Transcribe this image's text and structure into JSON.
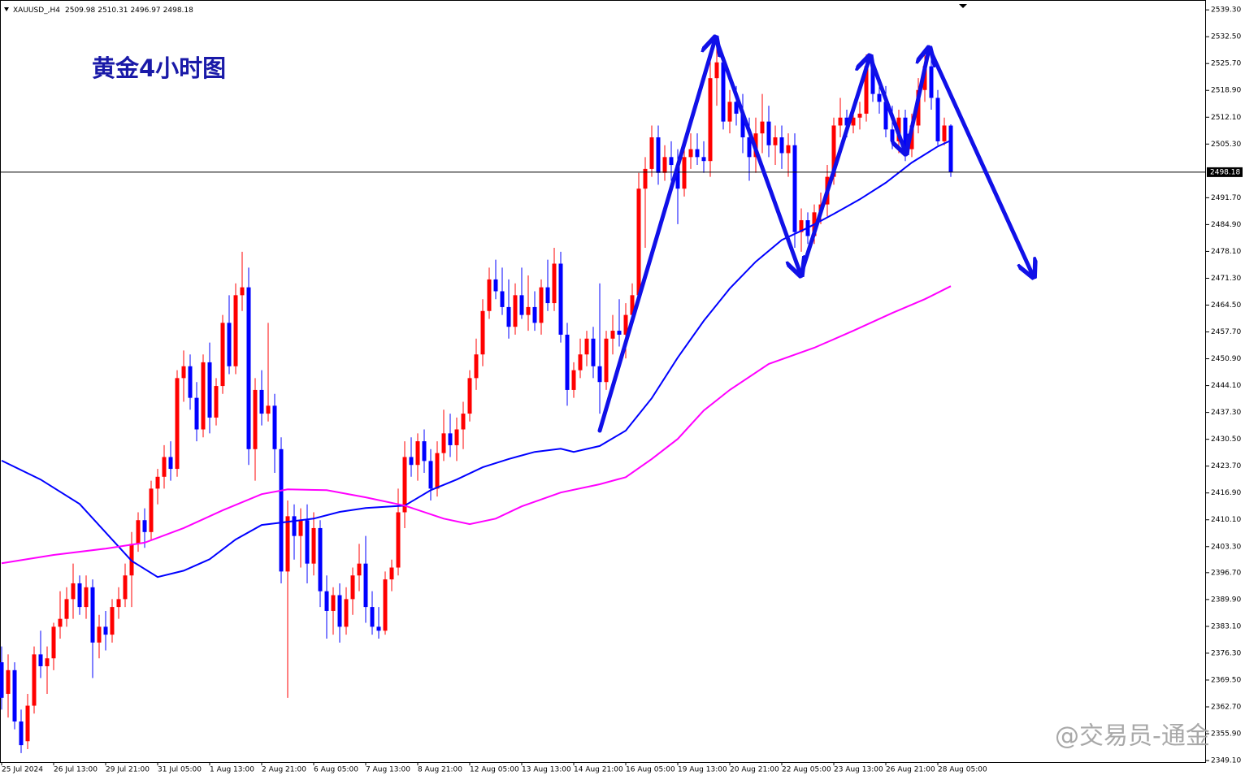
{
  "chart_data": {
    "type": "candlestick",
    "title": "黄金4小时图",
    "symbol": "XAUUSD_,H4",
    "watermark": "@交易员-通金",
    "up_color": "#ff0000",
    "down_color": "#0000ff",
    "xlim": [
      -0.25,
      185.25
    ],
    "ylim": [
      2348.7,
      2541.8
    ],
    "candles": [
      [
        2374,
        2378,
        2362,
        2365
      ],
      [
        2366,
        2376,
        2360,
        2372
      ],
      [
        2372,
        2374,
        2357,
        2359
      ],
      [
        2359,
        2362,
        2351,
        2353
      ],
      [
        2354,
        2366,
        2352,
        2363
      ],
      [
        2363,
        2378,
        2361,
        2376
      ],
      [
        2376,
        2382,
        2370,
        2373
      ],
      [
        2373,
        2378,
        2366,
        2375
      ],
      [
        2375,
        2384,
        2372,
        2383
      ],
      [
        2383,
        2392,
        2380,
        2385
      ],
      [
        2385,
        2393,
        2383,
        2390
      ],
      [
        2390,
        2399,
        2385,
        2394
      ],
      [
        2394,
        2396,
        2386,
        2388
      ],
      [
        2388,
        2396,
        2385,
        2393
      ],
      [
        2393,
        2395,
        2370,
        2379
      ],
      [
        2379,
        2386,
        2375,
        2383
      ],
      [
        2383,
        2387,
        2377,
        2381
      ],
      [
        2381,
        2390,
        2379,
        2388
      ],
      [
        2388,
        2393,
        2385,
        2390
      ],
      [
        2390,
        2399,
        2388,
        2396
      ],
      [
        2396,
        2407,
        2388,
        2404
      ],
      [
        2404,
        2412,
        2402,
        2410
      ],
      [
        2410,
        2413,
        2403,
        2407
      ],
      [
        2407,
        2420,
        2405,
        2418
      ],
      [
        2418,
        2423,
        2414,
        2421
      ],
      [
        2421,
        2429,
        2418,
        2426
      ],
      [
        2426,
        2430,
        2420,
        2423
      ],
      [
        2423,
        2448,
        2421,
        2446
      ],
      [
        2446,
        2453,
        2440,
        2449
      ],
      [
        2449,
        2452,
        2438,
        2441
      ],
      [
        2441,
        2445,
        2430,
        2433
      ],
      [
        2433,
        2452,
        2431,
        2450
      ],
      [
        2450,
        2455,
        2432,
        2436
      ],
      [
        2436,
        2446,
        2434,
        2444
      ],
      [
        2444,
        2462,
        2442,
        2460
      ],
      [
        2460,
        2467,
        2447,
        2449
      ],
      [
        2449,
        2470,
        2447,
        2467
      ],
      [
        2467,
        2478,
        2463,
        2469
      ],
      [
        2469,
        2474,
        2424,
        2428
      ],
      [
        2428,
        2446,
        2420,
        2443
      ],
      [
        2443,
        2448,
        2434,
        2437
      ],
      [
        2437,
        2460,
        2435,
        2439
      ],
      [
        2439,
        2442,
        2422,
        2428
      ],
      [
        2428,
        2431,
        2394,
        2397
      ],
      [
        2397,
        2415,
        2365,
        2411
      ],
      [
        2411,
        2414,
        2400,
        2406
      ],
      [
        2406,
        2413,
        2398,
        2410
      ],
      [
        2410,
        2414,
        2394,
        2399
      ],
      [
        2399,
        2412,
        2396,
        2408
      ],
      [
        2408,
        2410,
        2388,
        2392
      ],
      [
        2392,
        2396,
        2380,
        2387
      ],
      [
        2387,
        2393,
        2381,
        2391
      ],
      [
        2391,
        2394,
        2379,
        2383
      ],
      [
        2383,
        2393,
        2381,
        2390
      ],
      [
        2390,
        2398,
        2386,
        2396
      ],
      [
        2396,
        2404,
        2392,
        2399
      ],
      [
        2399,
        2406,
        2384,
        2388
      ],
      [
        2388,
        2392,
        2381,
        2383
      ],
      [
        2383,
        2388,
        2380,
        2382
      ],
      [
        2382,
        2397,
        2381,
        2395
      ],
      [
        2395,
        2400,
        2392,
        2398
      ],
      [
        2398,
        2418,
        2396,
        2412
      ],
      [
        2412,
        2430,
        2408,
        2426
      ],
      [
        2426,
        2431,
        2421,
        2424
      ],
      [
        2424,
        2432,
        2420,
        2430
      ],
      [
        2430,
        2433,
        2422,
        2425
      ],
      [
        2425,
        2428,
        2415,
        2418
      ],
      [
        2418,
        2430,
        2416,
        2427
      ],
      [
        2427,
        2438,
        2425,
        2432
      ],
      [
        2432,
        2437,
        2426,
        2429
      ],
      [
        2429,
        2436,
        2425,
        2433
      ],
      [
        2433,
        2440,
        2428,
        2437
      ],
      [
        2437,
        2448,
        2435,
        2446
      ],
      [
        2446,
        2456,
        2443,
        2452
      ],
      [
        2452,
        2466,
        2449,
        2463
      ],
      [
        2463,
        2474,
        2461,
        2471
      ],
      [
        2471,
        2476,
        2466,
        2468
      ],
      [
        2468,
        2474,
        2462,
        2464
      ],
      [
        2464,
        2471,
        2456,
        2459
      ],
      [
        2459,
        2470,
        2457,
        2467
      ],
      [
        2467,
        2474,
        2461,
        2462
      ],
      [
        2462,
        2472,
        2458,
        2464
      ],
      [
        2464,
        2468,
        2458,
        2460
      ],
      [
        2460,
        2471,
        2457,
        2469
      ],
      [
        2469,
        2476,
        2463,
        2465
      ],
      [
        2465,
        2479,
        2463,
        2475
      ],
      [
        2475,
        2478,
        2455,
        2457
      ],
      [
        2457,
        2460,
        2439,
        2443
      ],
      [
        2443,
        2450,
        2441,
        2448
      ],
      [
        2448,
        2456,
        2446,
        2452
      ],
      [
        2452,
        2458,
        2449,
        2456
      ],
      [
        2456,
        2459,
        2446,
        2449
      ],
      [
        2449,
        2470,
        2437,
        2445
      ],
      [
        2445,
        2458,
        2443,
        2456
      ],
      [
        2456,
        2462,
        2452,
        2458
      ],
      [
        2458,
        2466,
        2454,
        2457
      ],
      [
        2457,
        2465,
        2451,
        2462
      ],
      [
        2462,
        2470,
        2460,
        2467
      ],
      [
        2467,
        2498,
        2465,
        2494
      ],
      [
        2494,
        2502,
        2479,
        2499
      ],
      [
        2499,
        2510,
        2497,
        2507
      ],
      [
        2507,
        2510,
        2495,
        2498
      ],
      [
        2498,
        2505,
        2496,
        2502
      ],
      [
        2502,
        2506,
        2496,
        2500
      ],
      [
        2500,
        2504,
        2485,
        2494
      ],
      [
        2494,
        2505,
        2492,
        2502
      ],
      [
        2502,
        2508,
        2499,
        2504
      ],
      [
        2504,
        2508,
        2500,
        2502
      ],
      [
        2502,
        2506,
        2498,
        2501
      ],
      [
        2501,
        2529,
        2497,
        2522
      ],
      [
        2522,
        2532,
        2515,
        2526
      ],
      [
        2526,
        2528,
        2509,
        2511
      ],
      [
        2511,
        2519,
        2508,
        2516
      ],
      [
        2516,
        2520,
        2510,
        2513
      ],
      [
        2513,
        2518,
        2503,
        2507
      ],
      [
        2507,
        2512,
        2496,
        2502
      ],
      [
        2502,
        2512,
        2498,
        2508
      ],
      [
        2508,
        2518,
        2503,
        2511
      ],
      [
        2511,
        2515,
        2502,
        2505
      ],
      [
        2505,
        2510,
        2500,
        2507
      ],
      [
        2507,
        2510,
        2499,
        2503
      ],
      [
        2503,
        2508,
        2497,
        2505
      ],
      [
        2505,
        2508,
        2479,
        2483
      ],
      [
        2483,
        2489,
        2478,
        2486
      ],
      [
        2486,
        2488,
        2480,
        2482
      ],
      [
        2482,
        2490,
        2480,
        2488
      ],
      [
        2488,
        2493,
        2485,
        2490
      ],
      [
        2490,
        2500,
        2487,
        2497
      ],
      [
        2497,
        2512,
        2495,
        2510
      ],
      [
        2510,
        2517,
        2507,
        2512
      ],
      [
        2512,
        2514,
        2507,
        2510
      ],
      [
        2510,
        2515,
        2508,
        2512
      ],
      [
        2512,
        2516,
        2509,
        2513
      ],
      [
        2513,
        2528,
        2511,
        2525
      ],
      [
        2525,
        2527,
        2516,
        2518
      ],
      [
        2518,
        2522,
        2513,
        2516
      ],
      [
        2516,
        2520,
        2507,
        2509
      ],
      [
        2509,
        2515,
        2504,
        2506
      ],
      [
        2506,
        2514,
        2503,
        2512
      ],
      [
        2512,
        2514,
        2501,
        2504
      ],
      [
        2504,
        2513,
        2502,
        2510
      ],
      [
        2510,
        2522,
        2508,
        2519
      ],
      [
        2519,
        2528,
        2516,
        2525
      ],
      [
        2525,
        2527,
        2514,
        2517
      ],
      [
        2517,
        2519,
        2505,
        2506
      ],
      [
        2506,
        2512,
        2505,
        2510
      ],
      [
        2509.98,
        2510.31,
        2496.97,
        2498.18
      ]
    ],
    "series": [
      {
        "color": "#0000ff",
        "x": [
          0,
          6,
          12,
          16,
          20,
          24,
          28,
          32,
          36,
          40,
          44,
          48,
          52,
          56,
          62,
          66,
          70,
          74,
          78,
          82,
          86,
          88,
          92,
          96,
          100,
          104,
          108,
          112,
          116,
          120,
          124,
          128,
          132,
          136,
          140,
          144,
          146
        ],
        "values": [
          2425.1,
          2420.3,
          2414.1,
          2406.9,
          2399.7,
          2395.6,
          2397.2,
          2400.1,
          2405.1,
          2408.8,
          2409.6,
          2410.4,
          2412.1,
          2413.1,
          2413.7,
          2417.6,
          2420.3,
          2423.4,
          2425.5,
          2427.3,
          2428.1,
          2427.3,
          2428.8,
          2432.7,
          2440.9,
          2451.2,
          2460.5,
          2468.7,
          2475.5,
          2481.0,
          2484.1,
          2487.6,
          2491.3,
          2495.5,
          2500.6,
          2504.7,
          2506.2
        ]
      },
      {
        "color": "#ff00ff",
        "x": [
          0,
          8,
          16,
          22,
          28,
          34,
          40,
          44,
          50,
          56,
          62,
          68,
          72,
          76,
          80,
          86,
          92,
          96,
          100,
          104,
          108,
          112,
          118,
          125,
          131,
          137,
          142,
          146
        ],
        "values": [
          2399.1,
          2401.2,
          2402.8,
          2404.3,
          2408.0,
          2412.5,
          2416.6,
          2417.8,
          2417.6,
          2415.8,
          2413.7,
          2410.4,
          2409.0,
          2410.4,
          2413.5,
          2417.0,
          2419.1,
          2420.9,
          2425.5,
          2430.6,
          2437.8,
          2443.0,
          2449.6,
          2453.7,
          2458.0,
          2462.5,
          2466.0,
          2469.3
        ]
      }
    ],
    "xticks": [
      {
        "value": 0,
        "label": "25 Jul 2024"
      },
      {
        "value": 8,
        "label": "26 Jul 13:00"
      },
      {
        "value": 16,
        "label": "29 Jul 21:00"
      },
      {
        "value": 24,
        "label": "31 Jul 05:00"
      },
      {
        "value": 32,
        "label": "1 Aug 13:00"
      },
      {
        "value": 40,
        "label": "2 Aug 21:00"
      },
      {
        "value": 48,
        "label": "6 Aug 05:00"
      },
      {
        "value": 56,
        "label": "7 Aug 13:00"
      },
      {
        "value": 64,
        "label": "8 Aug 21:00"
      },
      {
        "value": 72,
        "label": "12 Aug 05:00"
      },
      {
        "value": 80,
        "label": "13 Aug 13:00"
      },
      {
        "value": 88,
        "label": "14 Aug 21:00"
      },
      {
        "value": 96,
        "label": "16 Aug 05:00"
      },
      {
        "value": 104,
        "label": "19 Aug 13:00"
      },
      {
        "value": 112,
        "label": "20 Aug 21:00"
      },
      {
        "value": 120,
        "label": "22 Aug 05:00"
      },
      {
        "value": 128,
        "label": "23 Aug 13:00"
      },
      {
        "value": 136,
        "label": "26 Aug 21:00"
      },
      {
        "value": 144,
        "label": "28 Aug 05:00"
      }
    ],
    "yticks": [
      {
        "value": 2539.3,
        "label": "2539.30"
      },
      {
        "value": 2532.5,
        "label": "2532.50"
      },
      {
        "value": 2525.7,
        "label": "2525.70"
      },
      {
        "value": 2518.9,
        "label": "2518.90"
      },
      {
        "value": 2512.1,
        "label": "2512.10"
      },
      {
        "value": 2505.3,
        "label": "2505.30"
      },
      {
        "value": 2491.7,
        "label": "2491.70"
      },
      {
        "value": 2484.9,
        "label": "2484.90"
      },
      {
        "value": 2478.1,
        "label": "2478.10"
      },
      {
        "value": 2471.3,
        "label": "2471.30"
      },
      {
        "value": 2464.5,
        "label": "2464.50"
      },
      {
        "value": 2457.7,
        "label": "2457.70"
      },
      {
        "value": 2450.9,
        "label": "2450.90"
      },
      {
        "value": 2444.1,
        "label": "2444.10"
      },
      {
        "value": 2437.3,
        "label": "2437.30"
      },
      {
        "value": 2430.5,
        "label": "2430.50"
      },
      {
        "value": 2423.7,
        "label": "2423.70"
      },
      {
        "value": 2416.9,
        "label": "2416.90"
      },
      {
        "value": 2410.1,
        "label": "2410.10"
      },
      {
        "value": 2403.3,
        "label": "2403.30"
      },
      {
        "value": 2396.7,
        "label": "2396.70"
      },
      {
        "value": 2389.9,
        "label": "2389.90"
      },
      {
        "value": 2383.1,
        "label": "2383.10"
      },
      {
        "value": 2376.3,
        "label": "2376.30"
      },
      {
        "value": 2369.5,
        "label": "2369.50"
      },
      {
        "value": 2362.7,
        "label": "2362.70"
      },
      {
        "value": 2355.9,
        "label": "2355.90"
      },
      {
        "value": 2349.1,
        "label": "2349.10"
      }
    ]
  }
}
